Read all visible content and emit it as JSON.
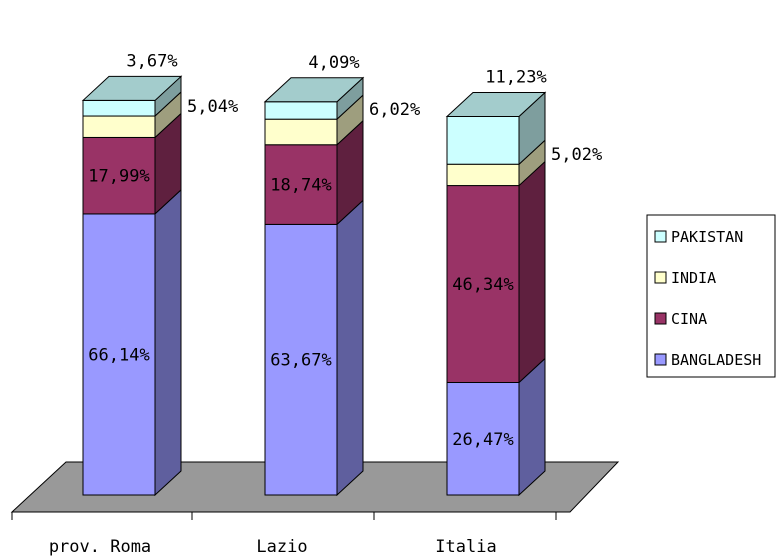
{
  "chart_data": {
    "type": "bar",
    "stacked": true,
    "percent_stacked": true,
    "three_d": true,
    "categories": [
      "prov. Roma",
      "Lazio",
      "Italia"
    ],
    "series": [
      {
        "name": "BANGLADESH",
        "color": "#9999ff",
        "values": [
          66.14,
          63.67,
          26.47
        ],
        "labels": [
          "66,14%",
          "63,67%",
          "26,47%"
        ]
      },
      {
        "name": "CINA",
        "color": "#993366",
        "values": [
          17.99,
          18.74,
          46.34
        ],
        "labels": [
          "17,99%",
          "18,74%",
          "46,34%"
        ]
      },
      {
        "name": "INDIA",
        "color": "#ffffcc",
        "values": [
          5.04,
          6.02,
          5.02
        ],
        "labels": [
          "5,04%",
          "6,02%",
          "5,02%"
        ]
      },
      {
        "name": "PAKISTAN",
        "color": "#ccffff",
        "values": [
          3.67,
          4.09,
          11.23
        ],
        "labels": [
          "3,67%",
          "4,09%",
          "11,23%"
        ]
      }
    ],
    "legend_order": [
      "PAKISTAN",
      "INDIA",
      "CINA",
      "BANGLADESH"
    ],
    "legend_position": "right",
    "floor_color": "#999999",
    "grid": false
  }
}
